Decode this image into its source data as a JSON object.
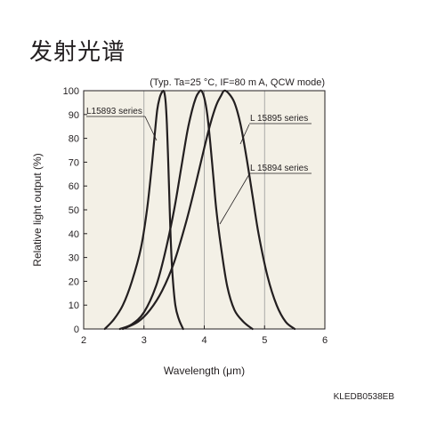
{
  "page": {
    "title": "发射光谱",
    "doc_code": "KLEDB0538EB"
  },
  "chart_data": {
    "type": "line",
    "subtitle": "(Typ. Ta=25 °C, IF=80 m A, QCW mode)",
    "xlabel": "Wavelength (μm)",
    "ylabel": "Relative light output (%)",
    "xlim": [
      2,
      6
    ],
    "ylim": [
      0,
      100
    ],
    "x_ticks": [
      "2",
      "3",
      "4",
      "5",
      "6"
    ],
    "y_ticks": [
      "0",
      "10",
      "20",
      "30",
      "40",
      "50",
      "60",
      "70",
      "80",
      "90",
      "100"
    ],
    "grid": true,
    "plot_background": "#f3f0e6",
    "line_color": "#231f20",
    "series": [
      {
        "name": "L15893 series",
        "x": [
          2.35,
          2.5,
          2.65,
          2.8,
          2.95,
          3.05,
          3.12,
          3.18,
          3.22,
          3.26,
          3.29,
          3.32,
          3.34,
          3.36,
          3.38,
          3.4,
          3.42,
          3.44,
          3.47,
          3.52,
          3.58,
          3.65
        ],
        "y": [
          0,
          4,
          10,
          20,
          34,
          50,
          66,
          82,
          92,
          97,
          99,
          100,
          99,
          95,
          86,
          72,
          56,
          40,
          24,
          10,
          4,
          0
        ]
      },
      {
        "name": "L15895 series",
        "x": [
          2.6,
          2.8,
          3.0,
          3.2,
          3.35,
          3.5,
          3.62,
          3.72,
          3.8,
          3.86,
          3.9,
          3.95,
          4.0,
          4.05,
          4.1,
          4.15,
          4.2,
          4.28,
          4.38,
          4.5,
          4.65,
          4.8
        ],
        "y": [
          0,
          2,
          7,
          18,
          32,
          50,
          68,
          83,
          92,
          97,
          99,
          100,
          97,
          90,
          78,
          64,
          50,
          34,
          18,
          8,
          3,
          0
        ]
      },
      {
        "name": "L15894 series",
        "x": [
          2.65,
          2.9,
          3.1,
          3.3,
          3.5,
          3.7,
          3.85,
          4.0,
          4.1,
          4.2,
          4.28,
          4.33,
          4.4,
          4.5,
          4.6,
          4.7,
          4.8,
          4.9,
          5.05,
          5.2,
          5.35,
          5.5
        ],
        "y": [
          0,
          3,
          8,
          16,
          28,
          45,
          60,
          76,
          86,
          94,
          98,
          100,
          99,
          95,
          86,
          72,
          56,
          40,
          22,
          10,
          3,
          0
        ]
      }
    ],
    "annotations": [
      {
        "text": "L15893 series",
        "series": 0
      },
      {
        "text": "L 15895 series",
        "series": 1
      },
      {
        "text": "L 15894 series",
        "series": 2
      }
    ]
  }
}
